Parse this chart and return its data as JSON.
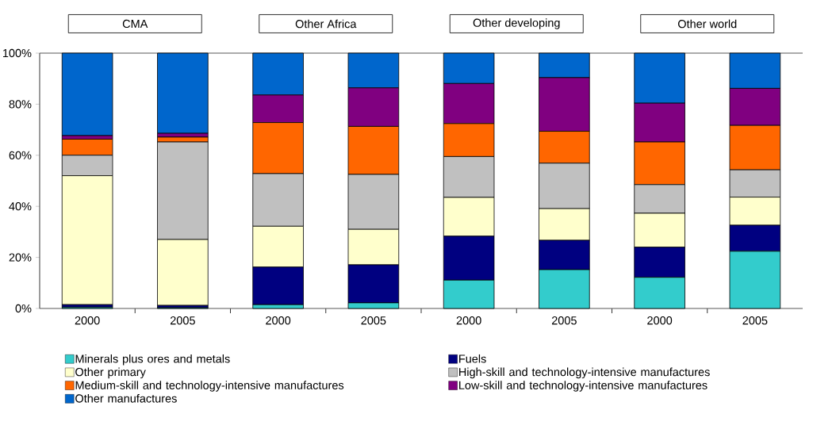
{
  "chart_data": {
    "type": "bar",
    "stacked": true,
    "categories": [
      "2000",
      "2005",
      "2000",
      "2005",
      "2000",
      "2005",
      "2000",
      "2005"
    ],
    "series": [
      {
        "name": "Minerals plus ores and metals",
        "color": "#33cccc",
        "values": [
          0.5,
          0.3,
          1.5,
          2.2,
          11.1,
          15.2,
          12.2,
          22.4
        ]
      },
      {
        "name": "Fuels",
        "color": "#000080",
        "values": [
          1.0,
          0.9,
          14.7,
          14.9,
          17.2,
          11.5,
          11.8,
          10.2
        ]
      },
      {
        "name": "Other primary",
        "color": "#ffffcc",
        "values": [
          50.5,
          25.8,
          16.0,
          13.9,
          15.2,
          12.4,
          13.3,
          11.0
        ]
      },
      {
        "name": "High-skill and technology-intensive manufactures",
        "color": "#c0c0c0",
        "values": [
          8.0,
          38.2,
          20.6,
          21.5,
          16.0,
          17.8,
          11.2,
          10.7
        ]
      },
      {
        "name": "Medium-skill and technology-intensive manufactures",
        "color": "#ff6600",
        "values": [
          6.3,
          1.9,
          20.0,
          18.8,
          12.9,
          12.5,
          16.7,
          17.4
        ]
      },
      {
        "name": "Low-skill and technology-intensive manufactures",
        "color": "#800080",
        "values": [
          1.4,
          1.5,
          10.8,
          15.1,
          15.7,
          21.0,
          15.2,
          14.5
        ]
      },
      {
        "name": "Other manufactures",
        "color": "#0066cc",
        "values": [
          32.3,
          31.4,
          16.4,
          13.6,
          11.9,
          9.6,
          19.6,
          13.8
        ]
      }
    ],
    "ylim": [
      0,
      100
    ],
    "yticks": [
      {
        "value": 0,
        "label": "0%"
      },
      {
        "value": 20,
        "label": "20%"
      },
      {
        "value": 40,
        "label": "40%"
      },
      {
        "value": 60,
        "label": "60%"
      },
      {
        "value": 80,
        "label": "80%"
      },
      {
        "value": 100,
        "label": "100%"
      }
    ],
    "annotations": [
      "CMA",
      "Other Africa",
      "Other developing",
      "Other world"
    ],
    "grid": false,
    "legend": "bottom"
  }
}
